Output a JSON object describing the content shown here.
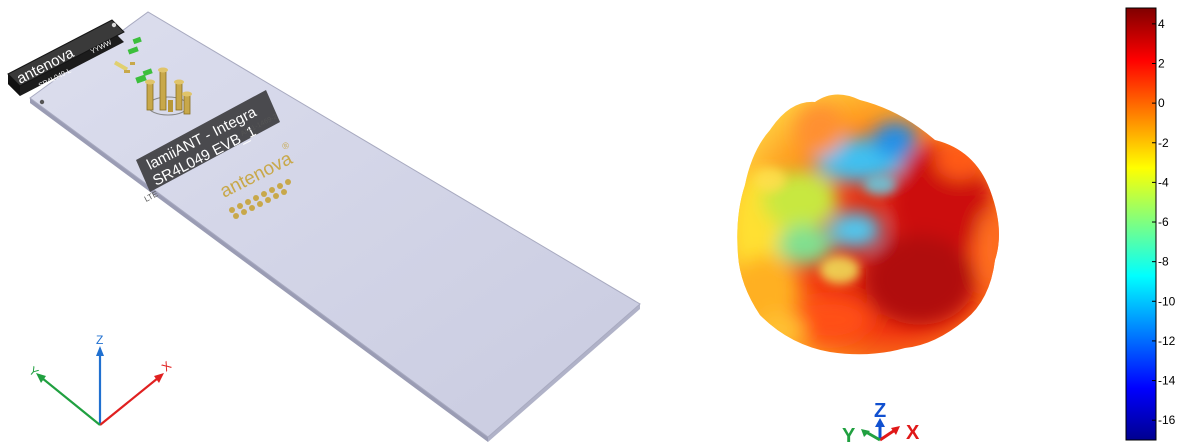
{
  "board": {
    "module_brand": "antenova",
    "module_part": "SR4L049-L",
    "module_date": "YYWW",
    "label_line1": "lamiiANT - Integra",
    "label_line2": "SR4L049 EVB_1",
    "label_revision": "AN-1-1469-2",
    "label_band": "LTE",
    "logo_text": "antenova",
    "logo_mark": "®"
  },
  "left_axes": {
    "x_label": "X",
    "y_label": "Y",
    "z_label": "Z"
  },
  "right_axes": {
    "x_label": "X",
    "y_label": "Y",
    "z_label": "Z"
  },
  "colorbar": {
    "ticks": [
      "4",
      "2",
      "0",
      "-2",
      "-4",
      "-6",
      "-8",
      "-10",
      "-12",
      "-14",
      "-16"
    ],
    "range": [
      -17,
      4.8
    ],
    "colormap": "jet"
  },
  "colors": {
    "board": "#d6d8ea",
    "module": "#2e2e2e",
    "gold": "#c8a84a",
    "axis_x": "#e02020",
    "axis_y": "#20a040",
    "axis_z": "#2070d0"
  }
}
